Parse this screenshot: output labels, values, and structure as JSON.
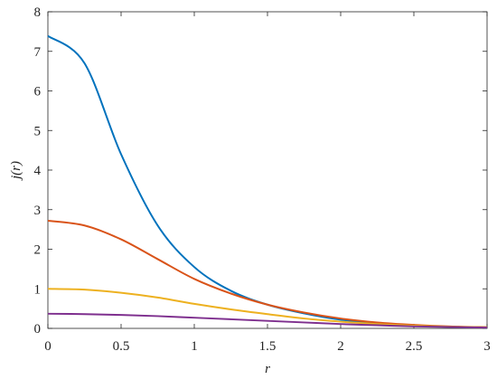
{
  "chart_data": {
    "type": "line",
    "x_label": "r",
    "y_label": "j(r)",
    "x": [
      0,
      0.25,
      0.5,
      0.75,
      1,
      1.25,
      1.5,
      1.75,
      2,
      2.25,
      2.5,
      2.75,
      3
    ],
    "series": [
      {
        "color": "#0072bd",
        "values": [
          7.39,
          6.7,
          4.4,
          2.6,
          1.55,
          0.95,
          0.6,
          0.38,
          0.22,
          0.13,
          0.07,
          0.04,
          0.02
        ]
      },
      {
        "color": "#d95319",
        "values": [
          2.72,
          2.6,
          2.25,
          1.75,
          1.25,
          0.88,
          0.6,
          0.4,
          0.25,
          0.15,
          0.09,
          0.05,
          0.03
        ]
      },
      {
        "color": "#edb120",
        "values": [
          1,
          0.98,
          0.9,
          0.78,
          0.62,
          0.48,
          0.36,
          0.25,
          0.17,
          0.11,
          0.07,
          0.04,
          0.025
        ]
      },
      {
        "color": "#7e2f8e",
        "values": [
          0.37,
          0.36,
          0.34,
          0.31,
          0.27,
          0.23,
          0.19,
          0.15,
          0.11,
          0.08,
          0.05,
          0.035,
          0.02
        ]
      }
    ],
    "xlim": [
      0,
      3
    ],
    "xticks": [
      0,
      0.5,
      1,
      1.5,
      2,
      2.5,
      3
    ],
    "ylim": [
      0,
      8
    ],
    "yticks": [
      0,
      1,
      2,
      3,
      4,
      5,
      6,
      7,
      8
    ],
    "grid": false
  }
}
